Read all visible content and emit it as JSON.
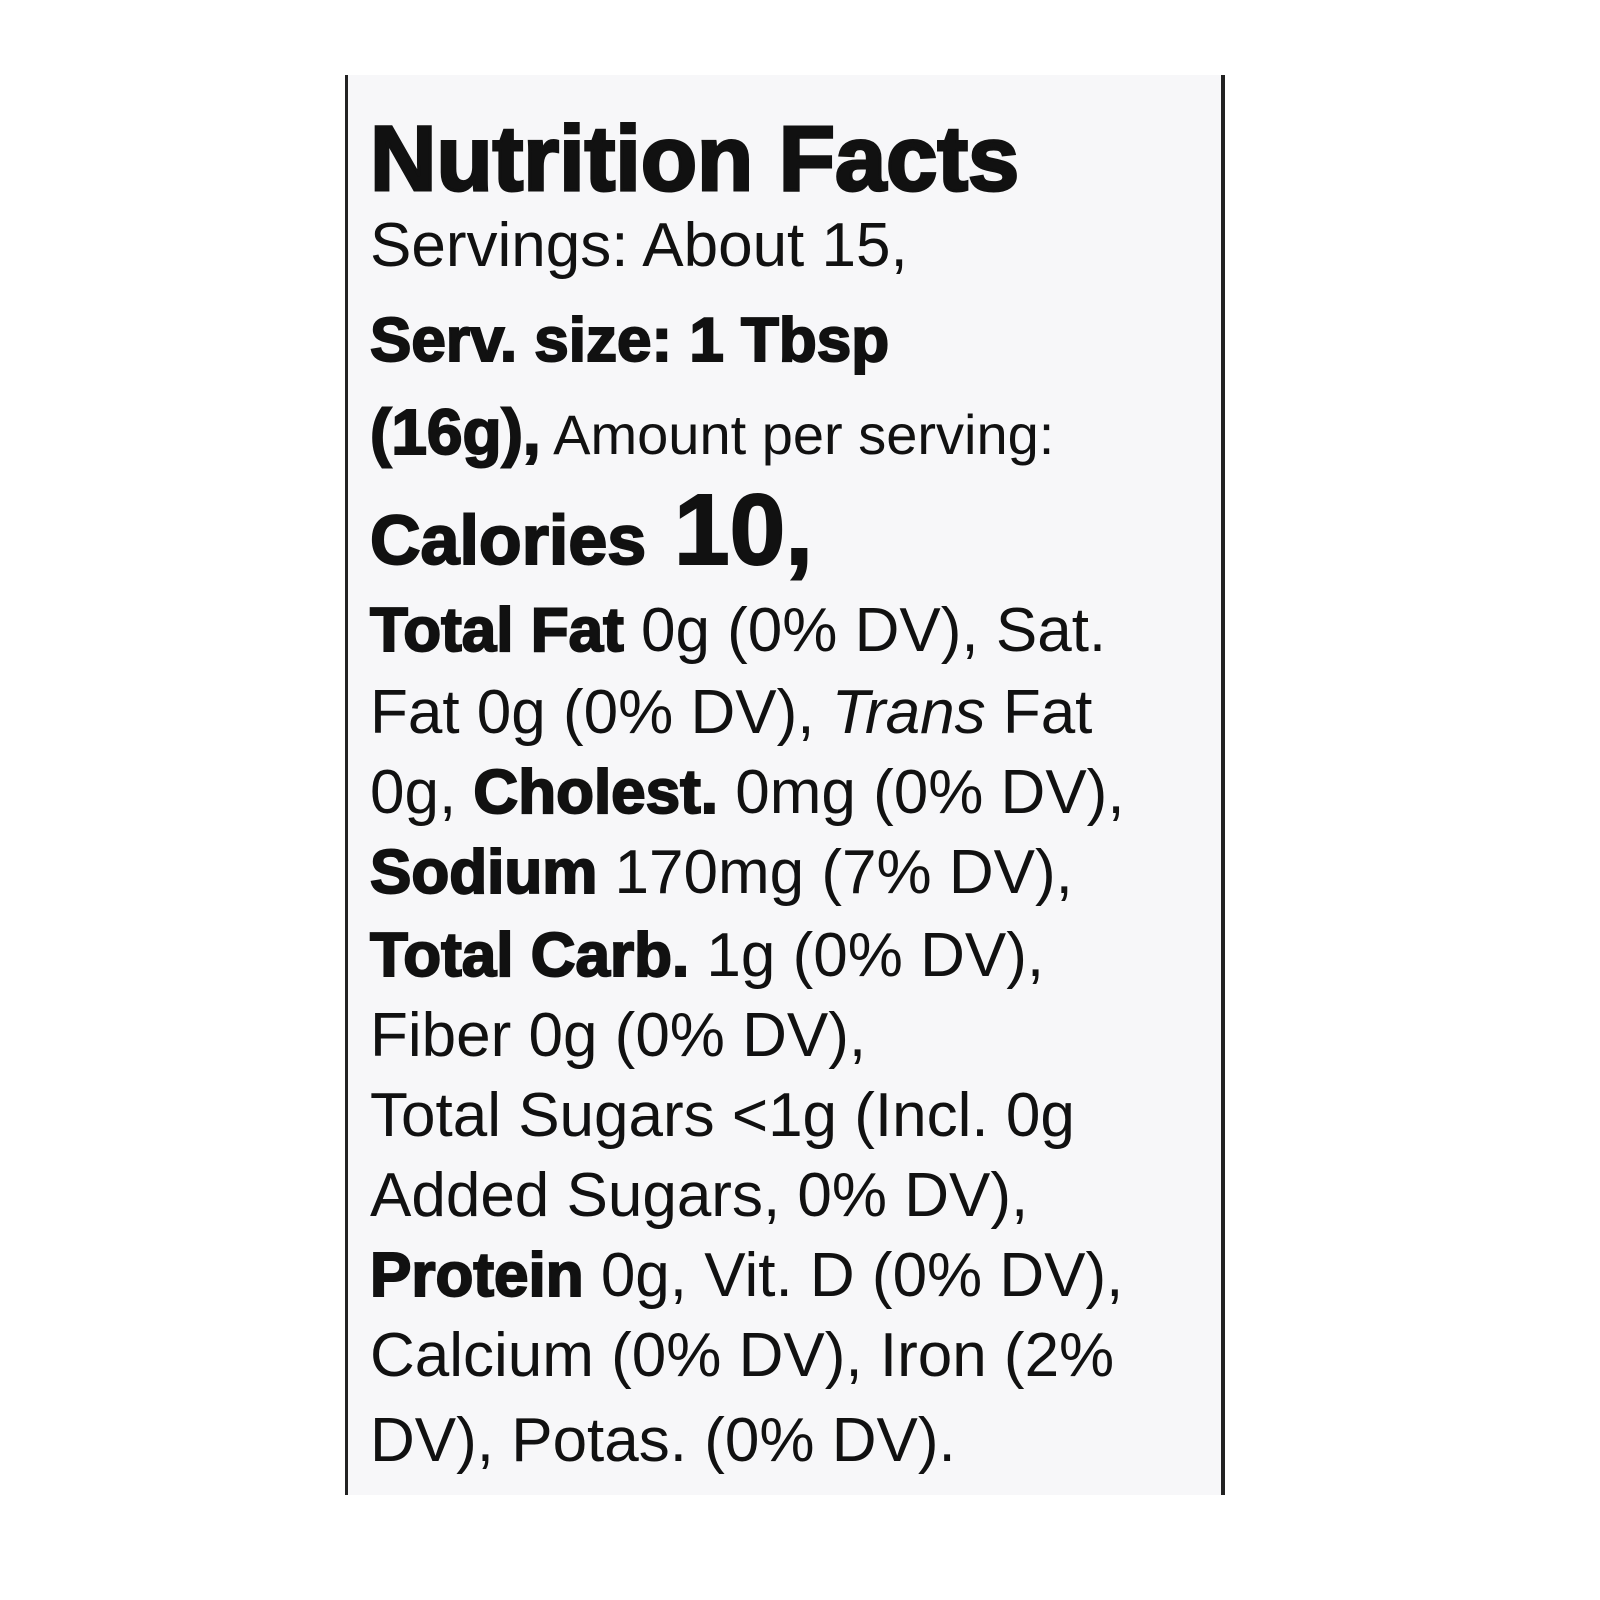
{
  "label": {
    "title": "Nutrition Facts",
    "lines": [
      [
        "Servings: About 15,"
      ],
      [
        "Serv. size: 1 Tbsp"
      ],
      [
        "(16g),",
        " Amount per serving:"
      ],
      [
        "Calories",
        " 10,"
      ],
      [
        "Total Fat",
        " 0g (0% DV), Sat."
      ],
      [
        "Fat 0g (0% DV), ",
        "Trans",
        " Fat"
      ],
      [
        "0g, ",
        "Cholest.",
        " 0mg (0% DV),"
      ],
      [
        "Sodium",
        " 170mg (7% DV),"
      ],
      [
        "Total Carb.",
        " 1g (0% DV),"
      ],
      [
        "Fiber 0g (0% DV),"
      ],
      [
        "Total Sugars <1g (Incl. 0g"
      ],
      [
        "Added Sugars, 0% DV),"
      ],
      [
        "Protein",
        " 0g, Vit. D (0% DV),"
      ],
      [
        "Calcium (0% DV), Iron (2%"
      ],
      [
        "DV), Potas. (0% DV)."
      ]
    ]
  }
}
